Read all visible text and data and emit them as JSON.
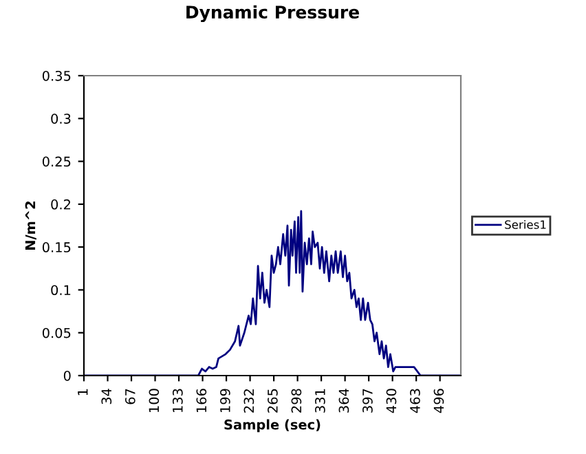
{
  "chart_data": {
    "type": "line",
    "title": "Dynamic Pressure",
    "xlabel": "Sample (sec)",
    "ylabel": "N/m^2",
    "xlim": [
      1,
      525
    ],
    "xticks": [
      1,
      34,
      67,
      100,
      133,
      166,
      199,
      232,
      265,
      298,
      331,
      364,
      397,
      430,
      463,
      496
    ],
    "ylim": [
      0,
      0.35
    ],
    "yticks": [
      0,
      0.05,
      0.1,
      0.15,
      0.2,
      0.25,
      0.3,
      0.35
    ],
    "grid": false,
    "legend": "right",
    "marker": "none",
    "line_style": "solid",
    "series": [
      {
        "name": "Series1",
        "color": "#000080",
        "x": [
          1,
          160,
          165,
          170,
          175,
          180,
          185,
          188,
          198,
          204,
          211,
          216,
          218,
          224,
          230,
          233,
          236,
          240,
          243,
          246,
          249,
          252,
          255,
          259,
          262,
          265,
          268,
          271,
          274,
          278,
          281,
          284,
          286,
          289,
          291,
          294,
          296,
          299,
          301,
          303,
          305,
          308,
          311,
          314,
          317,
          319,
          322,
          326,
          329,
          332,
          335,
          338,
          342,
          345,
          348,
          351,
          354,
          358,
          361,
          364,
          367,
          370,
          373,
          377,
          380,
          383,
          386,
          389,
          392,
          396,
          399,
          402,
          405,
          408,
          412,
          415,
          418,
          421,
          424,
          427,
          431,
          434,
          440,
          460,
          469,
          525
        ],
        "values": [
          0,
          0,
          0.008,
          0.005,
          0.01,
          0.008,
          0.01,
          0.02,
          0.025,
          0.03,
          0.04,
          0.058,
          0.035,
          0.05,
          0.07,
          0.06,
          0.09,
          0.06,
          0.128,
          0.09,
          0.12,
          0.085,
          0.1,
          0.08,
          0.14,
          0.12,
          0.13,
          0.15,
          0.13,
          0.165,
          0.14,
          0.175,
          0.105,
          0.17,
          0.14,
          0.18,
          0.12,
          0.185,
          0.12,
          0.192,
          0.098,
          0.155,
          0.13,
          0.16,
          0.13,
          0.168,
          0.15,
          0.155,
          0.125,
          0.15,
          0.12,
          0.145,
          0.11,
          0.14,
          0.12,
          0.145,
          0.12,
          0.145,
          0.115,
          0.14,
          0.11,
          0.12,
          0.09,
          0.1,
          0.08,
          0.09,
          0.065,
          0.09,
          0.065,
          0.085,
          0.065,
          0.06,
          0.04,
          0.05,
          0.025,
          0.04,
          0.02,
          0.035,
          0.01,
          0.025,
          0.005,
          0.01,
          0.01,
          0.01,
          0,
          0
        ]
      }
    ]
  }
}
